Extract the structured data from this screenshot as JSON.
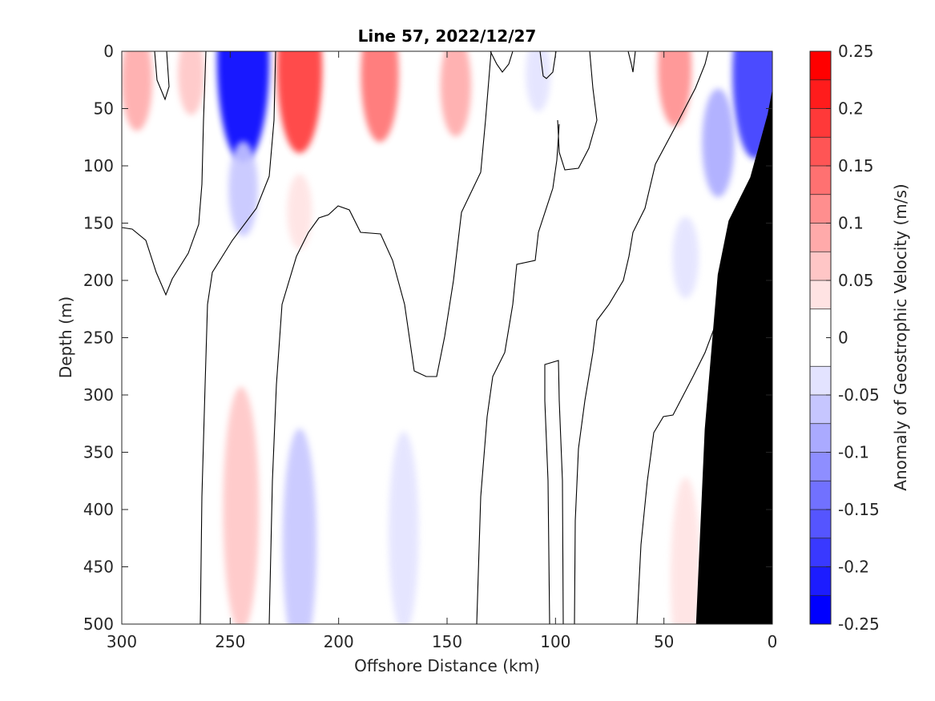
{
  "chart_data": {
    "type": "heatmap",
    "title": "Line 57, 2022/12/27",
    "xlabel": "Offshore Distance (km)",
    "ylabel": "Depth (m)",
    "xlim": [
      300,
      0
    ],
    "ylim": [
      0,
      500
    ],
    "x_ticks": [
      "300",
      "250",
      "200",
      "150",
      "100",
      "50",
      "0"
    ],
    "y_ticks": [
      "0",
      "50",
      "100",
      "150",
      "200",
      "250",
      "300",
      "350",
      "400",
      "450",
      "500"
    ],
    "x_tick_values": [
      300,
      250,
      200,
      150,
      100,
      50,
      0
    ],
    "y_tick_values": [
      0,
      50,
      100,
      150,
      200,
      250,
      300,
      350,
      400,
      450,
      500
    ],
    "grid": false,
    "colorbar": {
      "label": "Anomaly of Geostrophic Velocity (m/s)",
      "range": [
        -0.25,
        0.25
      ],
      "ticks": [
        "0.25",
        "0.2",
        "0.15",
        "0.1",
        "0.05",
        "0",
        "-0.05",
        "-0.1",
        "-0.15",
        "-0.2",
        "-0.25"
      ],
      "tick_values": [
        0.25,
        0.2,
        0.15,
        0.1,
        0.05,
        0,
        -0.05,
        -0.1,
        -0.15,
        -0.2,
        -0.25
      ],
      "levels": [
        -0.25,
        -0.225,
        -0.2,
        -0.175,
        -0.15,
        -0.125,
        -0.1,
        -0.075,
        -0.05,
        -0.025,
        0.025,
        0.05,
        0.075,
        0.1,
        0.125,
        0.15,
        0.175,
        0.2,
        0.225,
        0.25
      ],
      "colors": [
        "#0000ff",
        "#1c1cff",
        "#3939ff",
        "#5555ff",
        "#7171ff",
        "#8e8eff",
        "#aaaaff",
        "#c6c6ff",
        "#e3e3ff",
        "#ffffff",
        "#ffe3e3",
        "#ffc6c6",
        "#ffaaaa",
        "#ff8e8e",
        "#ff7171",
        "#ff5555",
        "#ff3939",
        "#ff1c1c",
        "#ff0000"
      ]
    },
    "contour_levels_shown": [
      0
    ],
    "features": [
      {
        "x": 244,
        "depth": 8,
        "value": -0.23
      },
      {
        "x": 244,
        "depth": 120,
        "value": -0.07
      },
      {
        "x": 218,
        "depth": 15,
        "value": 0.18
      },
      {
        "x": 218,
        "depth": 140,
        "value": 0.04
      },
      {
        "x": 181,
        "depth": 20,
        "value": 0.13
      },
      {
        "x": 146,
        "depth": 30,
        "value": 0.08
      },
      {
        "x": 293,
        "depth": 25,
        "value": 0.08
      },
      {
        "x": 268,
        "depth": 20,
        "value": 0.05
      },
      {
        "x": 45,
        "depth": 15,
        "value": 0.1
      },
      {
        "x": 8,
        "depth": 20,
        "value": -0.18
      },
      {
        "x": 25,
        "depth": 80,
        "value": -0.09
      },
      {
        "x": 40,
        "depth": 180,
        "value": -0.05
      },
      {
        "x": 245,
        "depth": 400,
        "value": 0.07
      },
      {
        "x": 218,
        "depth": 430,
        "value": -0.06
      },
      {
        "x": 170,
        "depth": 420,
        "value": -0.04
      },
      {
        "x": 40,
        "depth": 460,
        "value": 0.04
      },
      {
        "x": 108,
        "depth": 20,
        "value": -0.04
      }
    ],
    "bathymetry": [
      [
        35,
        500
      ],
      [
        31,
        330
      ],
      [
        25,
        195
      ],
      [
        20,
        148
      ],
      [
        10,
        110
      ],
      [
        2,
        55
      ],
      [
        0,
        35
      ]
    ]
  }
}
